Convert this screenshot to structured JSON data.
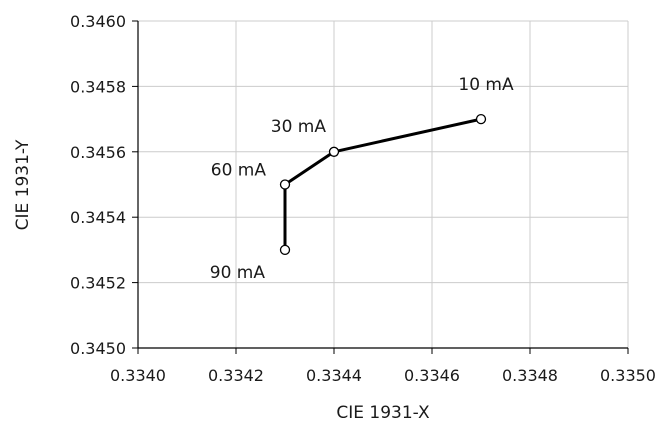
{
  "chart_data": {
    "type": "scatter",
    "title": "",
    "xlabel": "CIE 1931-X",
    "ylabel": "CIE 1931-Y",
    "xlim": [
      0.334,
      0.335
    ],
    "ylim": [
      0.345,
      0.346
    ],
    "xticks": [
      "0.3340",
      "0.3342",
      "0.3344",
      "0.3346",
      "0.3348",
      "0.3350"
    ],
    "yticks": [
      "0.3450",
      "0.3452",
      "0.3454",
      "0.3456",
      "0.3458",
      "0.3460"
    ],
    "grid": true,
    "legend": "none",
    "line_color": "#000000",
    "grid_color": "#cccccc",
    "series": [
      {
        "points": [
          {
            "x": 0.3347,
            "y": 0.3457,
            "label": "10 mA"
          },
          {
            "x": 0.3344,
            "y": 0.3456,
            "label": "30 mA"
          },
          {
            "x": 0.3343,
            "y": 0.3455,
            "label": "60 mA"
          },
          {
            "x": 0.3343,
            "y": 0.3453,
            "label": "90 mA"
          }
        ]
      }
    ]
  }
}
